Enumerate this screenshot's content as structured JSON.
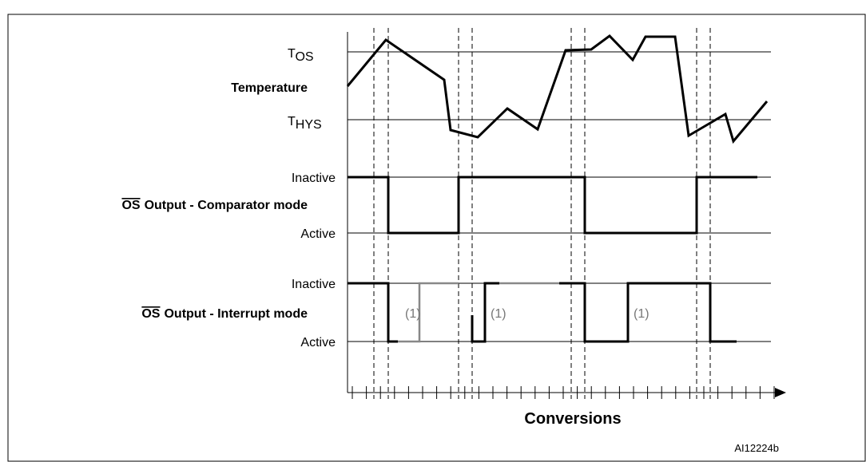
{
  "temperature_axis": {
    "t_os": {
      "main": "T",
      "sub": "OS"
    },
    "label": "Temperature",
    "t_hys": {
      "main": "T",
      "sub": "HYS"
    }
  },
  "comparator": {
    "inactive": "Inactive",
    "title": {
      "overlined": "OS",
      "rest": "Output - Comparator mode"
    },
    "active": "Active"
  },
  "interrupt": {
    "inactive": "Inactive",
    "title": {
      "overlined": "OS",
      "rest": "Output - Interrupt mode"
    },
    "active": "Active",
    "notes": [
      "(1)",
      "(1)",
      "(1)"
    ]
  },
  "x_axis_label": "Conversions",
  "figure_id": "AI12224b"
}
